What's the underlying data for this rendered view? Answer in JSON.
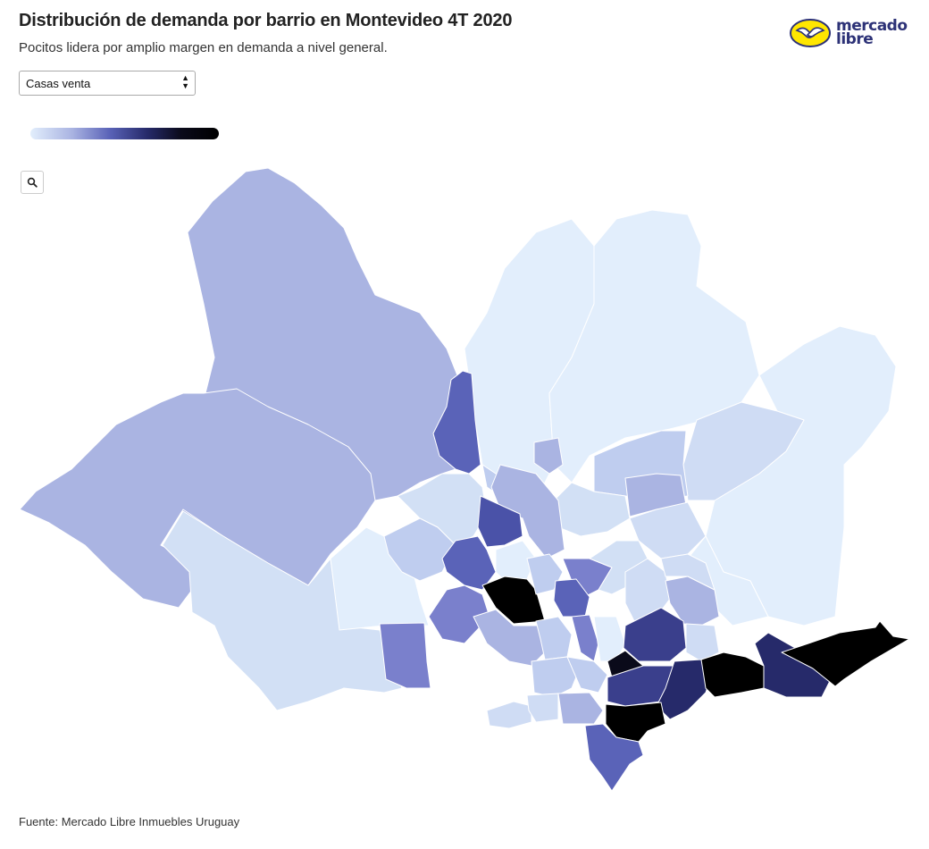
{
  "header": {
    "title": "Distribución de demanda por barrio en Montevideo 4T 2020",
    "subtitle": "Pocitos lidera por amplio margen en demanda a nivel general."
  },
  "logo": {
    "line1": "mercado",
    "line2": "libre",
    "primary_color": "#2d3277",
    "accent_color": "#ffe600"
  },
  "filter": {
    "selected": "Casas venta"
  },
  "legend": {
    "colors": [
      "#e2eefc",
      "#aab4e2",
      "#5a63b8",
      "#262a6a",
      "#000000"
    ]
  },
  "toolbar": {
    "zoom_icon": "search-icon"
  },
  "map": {
    "city": "Montevideo",
    "regions_highest_demand": [
      "Pocitos"
    ],
    "color_scale": [
      "#e2eefc",
      "#bfcdef",
      "#aab4e2",
      "#7a80cc",
      "#5a63b8",
      "#3a3f8c",
      "#262a6a",
      "#000000"
    ]
  },
  "footer": {
    "source": "Fuente: Mercado Libre Inmuebles Uruguay"
  }
}
